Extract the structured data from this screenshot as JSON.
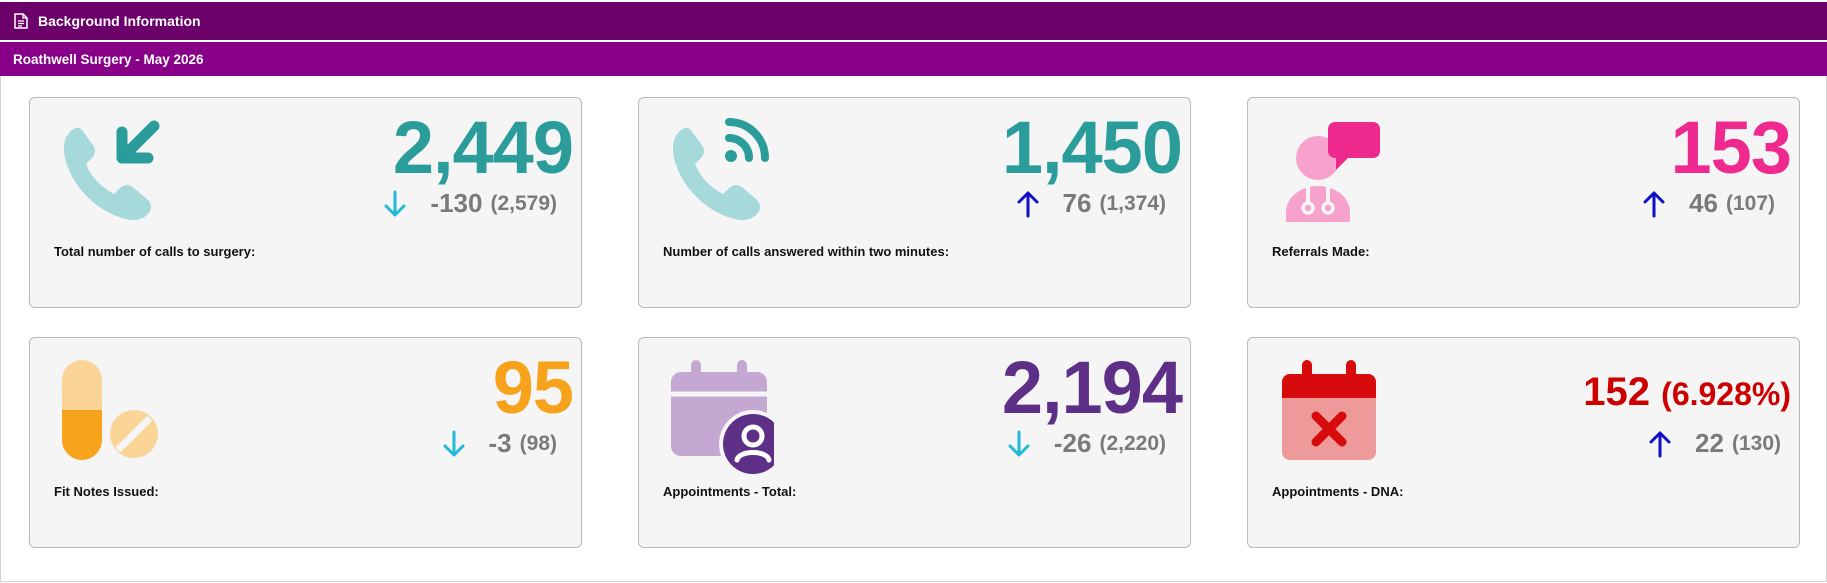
{
  "header": {
    "title": "Background Information",
    "icon": "document-icon"
  },
  "subheader": {
    "title": "Roathwell Surgery - May 2026"
  },
  "colors": {
    "header_bg": "#6b006b",
    "subheader_bg": "#870087",
    "teal": "#2a9d9a",
    "pink": "#ee2a8f",
    "orange": "#f7a21b",
    "purple": "#5e2f86",
    "red": "#cc0000",
    "arrow_down": "#22b8d8",
    "arrow_up": "#1010c8"
  },
  "cards": [
    {
      "label": "Total number of calls to surgery:",
      "value": "2,449",
      "delta": "-130",
      "previous": "(2,579)",
      "direction": "down",
      "icon": "incoming-call-icon"
    },
    {
      "label": "Number of calls answered within two minutes:",
      "value": "1,450",
      "delta": "76",
      "previous": "(1,374)",
      "direction": "up",
      "icon": "phone-signal-icon"
    },
    {
      "label": "Referrals Made:",
      "value": "153",
      "delta": "46",
      "previous": "(107)",
      "direction": "up",
      "icon": "doctor-chat-icon"
    },
    {
      "label": "Fit Notes Issued:",
      "value": "95",
      "delta": "-3",
      "previous": "(98)",
      "direction": "down",
      "icon": "pills-icon"
    },
    {
      "label": "Appointments - Total:",
      "value": "2,194",
      "delta": "-26",
      "previous": "(2,220)",
      "direction": "down",
      "icon": "calendar-person-icon"
    },
    {
      "label": "Appointments - DNA:",
      "value": "152",
      "value_extra": "(6.928%)",
      "delta": "22",
      "previous": "(130)",
      "direction": "up",
      "icon": "calendar-cross-icon"
    }
  ]
}
